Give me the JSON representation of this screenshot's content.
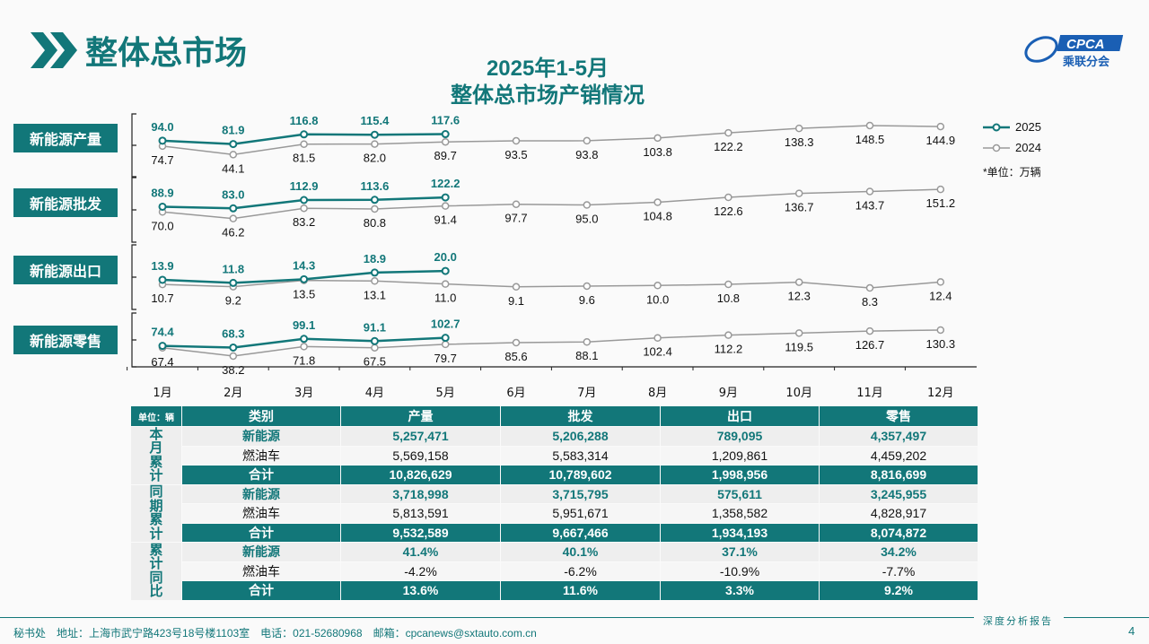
{
  "header": {
    "title": "整体总市场"
  },
  "chart_data": {
    "type": "line",
    "title": "2025年1-5月",
    "subtitle": "整体总市场产销情况",
    "unit": "*单位：万辆",
    "categories": [
      "1月",
      "2月",
      "3月",
      "4月",
      "5月",
      "6月",
      "7月",
      "8月",
      "9月",
      "10月",
      "11月",
      "12月"
    ],
    "legend": [
      "2025",
      "2024"
    ],
    "legend_position": "right",
    "colors": {
      "2025": "#127779",
      "2024": "#999999"
    },
    "panels": [
      {
        "label": "新能源产量",
        "series": [
          {
            "name": "2025",
            "values": [
              94.0,
              81.9,
              116.8,
              115.4,
              117.6
            ]
          },
          {
            "name": "2024",
            "values": [
              74.7,
              44.1,
              81.5,
              82.0,
              89.7,
              93.5,
              93.8,
              103.8,
              122.2,
              138.3,
              148.5,
              144.9
            ]
          }
        ]
      },
      {
        "label": "新能源批发",
        "series": [
          {
            "name": "2025",
            "values": [
              88.9,
              83.0,
              112.9,
              113.6,
              122.2
            ]
          },
          {
            "name": "2024",
            "values": [
              70.0,
              46.2,
              83.2,
              80.8,
              91.4,
              97.7,
              95.0,
              104.8,
              122.6,
              136.7,
              143.7,
              151.2
            ]
          }
        ]
      },
      {
        "label": "新能源出口",
        "series": [
          {
            "name": "2025",
            "values": [
              13.9,
              11.8,
              14.3,
              18.9,
              20.0
            ]
          },
          {
            "name": "2024",
            "values": [
              10.7,
              9.2,
              13.5,
              13.1,
              11.0,
              9.1,
              9.6,
              10.0,
              10.8,
              12.3,
              8.3,
              12.4
            ]
          }
        ]
      },
      {
        "label": "新能源零售",
        "series": [
          {
            "name": "2025",
            "values": [
              74.4,
              68.3,
              99.1,
              91.1,
              102.7
            ]
          },
          {
            "name": "2024",
            "values": [
              67.4,
              38.2,
              71.8,
              67.5,
              79.7,
              85.6,
              88.1,
              102.4,
              112.2,
              119.5,
              126.7,
              130.3
            ]
          }
        ]
      }
    ]
  },
  "table": {
    "unit": "单位：辆",
    "headers": [
      "类别",
      "产量",
      "批发",
      "出口",
      "零售"
    ],
    "groups": [
      {
        "label": "本月累计",
        "rows": [
          [
            "新能源",
            "5,257,471",
            "5,206,288",
            "789,095",
            "4,357,497"
          ],
          [
            "燃油车",
            "5,569,158",
            "5,583,314",
            "1,209,861",
            "4,459,202"
          ],
          [
            "合计",
            "10,826,629",
            "10,789,602",
            "1,998,956",
            "8,816,699"
          ]
        ]
      },
      {
        "label": "同期累计",
        "rows": [
          [
            "新能源",
            "3,718,998",
            "3,715,795",
            "575,611",
            "3,245,955"
          ],
          [
            "燃油车",
            "5,813,591",
            "5,951,671",
            "1,358,582",
            "4,828,917"
          ],
          [
            "合计",
            "9,532,589",
            "9,667,466",
            "1,934,193",
            "8,074,872"
          ]
        ]
      },
      {
        "label": "累计同比",
        "rows": [
          [
            "新能源",
            "41.4%",
            "40.1%",
            "37.1%",
            "34.2%"
          ],
          [
            "燃油车",
            "-4.2%",
            "-6.2%",
            "-10.9%",
            "-7.7%"
          ],
          [
            "合计",
            "13.6%",
            "11.6%",
            "3.3%",
            "9.2%"
          ]
        ]
      }
    ]
  },
  "logo": {
    "text": "CPCA",
    "sub": "乘联分会"
  },
  "footer": {
    "text": "秘书处　地址：上海市武宁路423号18号楼1103室　电话：021-52680968　邮箱：cpcanews@sxtauto.com.cn",
    "right": "深度分析报告",
    "page": "4"
  }
}
